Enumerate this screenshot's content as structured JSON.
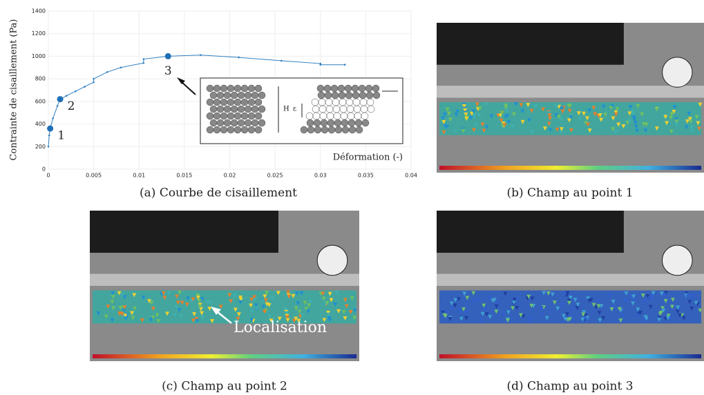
{
  "chart_data": {
    "type": "line",
    "y_label": "Contrainte de cisaillement (Pa)",
    "x_label": "Déformation (-)",
    "x": [
      0,
      0.0001,
      0.0002,
      0.0005,
      0.001,
      0.0013,
      0.002,
      0.003,
      0.004,
      0.005,
      0.005,
      0.0065,
      0.008,
      0.0105,
      0.0105,
      0.0132,
      0.0168,
      0.021,
      0.0257,
      0.03,
      0.03,
      0.0327
    ],
    "values": [
      200,
      300,
      360,
      450,
      560,
      620,
      650,
      690,
      730,
      770,
      800,
      860,
      900,
      940,
      975,
      1000,
      1010,
      990,
      960,
      935,
      925,
      925
    ],
    "color": "#2f7fc1",
    "highlights": {
      "labels": [
        "1",
        "2",
        "3"
      ],
      "x": [
        0.0002,
        0.0013,
        0.0132
      ],
      "y": [
        360,
        620,
        1000
      ]
    },
    "xlim": [
      0,
      0.04
    ],
    "ylim": [
      0,
      1400
    ],
    "xticks": [
      0,
      0.005,
      0.01,
      0.015,
      0.02,
      0.025,
      0.03,
      0.035,
      0.04
    ],
    "yticks": [
      0,
      200,
      400,
      600,
      800,
      1000,
      1200,
      1400
    ],
    "grid": true,
    "inset_labels": [
      "H",
      "ε"
    ]
  },
  "panels": [
    {
      "caption": "(a) Courbe de cisaillement"
    },
    {
      "caption": "(b) Champ au point 1"
    },
    {
      "caption": "(c) Champ au point 2"
    },
    {
      "caption": "(d) Champ au point 3"
    }
  ],
  "annotation": "Localisation"
}
